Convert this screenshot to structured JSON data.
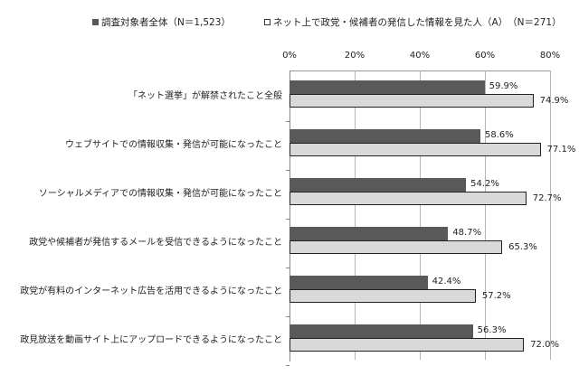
{
  "chart_data": {
    "type": "bar",
    "orientation": "horizontal",
    "title": "",
    "xlabel": "",
    "ylabel": "",
    "xlim": [
      0,
      80
    ],
    "x_ticks": [
      "0%",
      "20%",
      "40%",
      "60%",
      "80%"
    ],
    "grid": true,
    "legend_position": "top",
    "categories": [
      "「ネット選挙」が解禁されたこと全般",
      "ウェブサイトでの情報収集・発信が可能になったこと",
      "ソーシャルメディアでの情報収集・発信が可能になったこと",
      "政党や候補者が発信するメールを受信できるようになったこと",
      "政党が有料のインターネット広告を活用できるようになったこと",
      "政見放送を動画サイト上にアップロードできるようになったこと"
    ],
    "series": [
      {
        "name": "調査対象者全体（N＝1,523）",
        "color": "#595959",
        "values": [
          59.9,
          58.6,
          54.2,
          48.7,
          42.4,
          56.3
        ],
        "labels": [
          "59.9%",
          "58.6%",
          "54.2%",
          "48.7%",
          "42.4%",
          "56.3%"
        ]
      },
      {
        "name": "ネット上で政党・候補者の発信した情報を見た人（A）　（N＝271）",
        "color": "#d9d9d9",
        "values": [
          74.9,
          77.1,
          72.7,
          65.3,
          57.2,
          72.0
        ],
        "labels": [
          "74.9%",
          "77.1%",
          "72.7%",
          "65.3%",
          "57.2%",
          "72.0%"
        ]
      }
    ]
  },
  "legend": {
    "item1": "調査対象者全体（N＝1,523）",
    "item2": "ネット上で政党・候補者の発信した情報を見た人（A）　（N＝271）"
  }
}
